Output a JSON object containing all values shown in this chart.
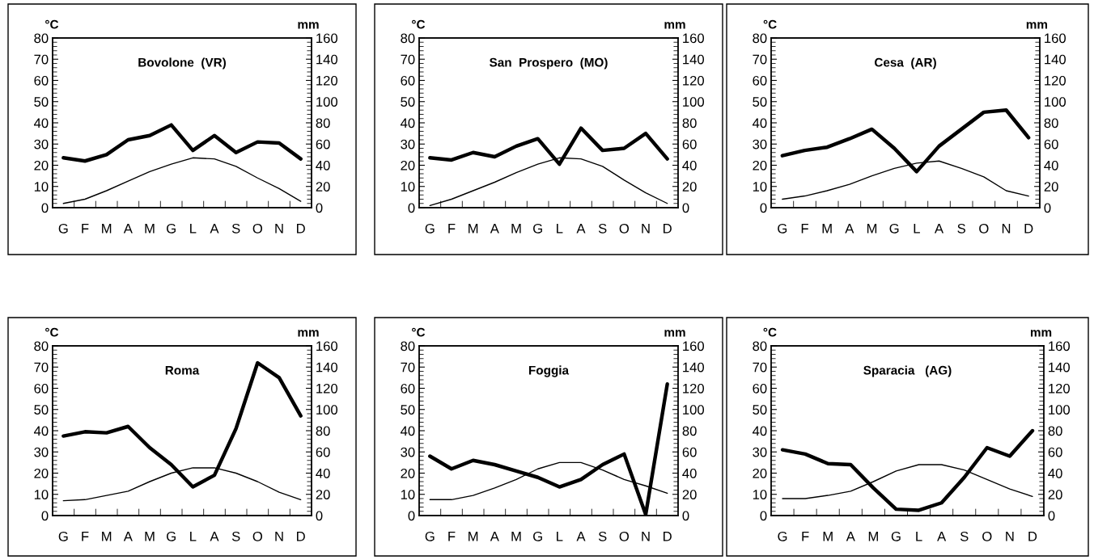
{
  "chart_data": [
    {
      "type": "line",
      "title": "Bovolone  (VR)",
      "ylabel": "°C",
      "y2label": "mm",
      "categories": [
        "G",
        "F",
        "M",
        "A",
        "M",
        "G",
        "L",
        "A",
        "S",
        "O",
        "N",
        "D"
      ],
      "ylim": [
        0,
        80
      ],
      "yticks": [
        0,
        10,
        20,
        30,
        40,
        50,
        60,
        70,
        80
      ],
      "y2lim": [
        0,
        160
      ],
      "y2ticks": [
        0,
        20,
        40,
        60,
        80,
        100,
        120,
        140,
        160
      ],
      "series": [
        {
          "color": "#000000",
          "values": [
            2,
            4,
            8,
            12.5,
            17,
            20.5,
            23.5,
            23,
            19.5,
            14,
            9,
            3
          ]
        },
        {
          "color": "#000000",
          "axis": "y2",
          "values": [
            47,
            44,
            50,
            64,
            68,
            78,
            54,
            68,
            52,
            62,
            61,
            46
          ]
        }
      ]
    },
    {
      "type": "line",
      "title": "San  Prospero  (MO)",
      "ylabel": "°C",
      "y2label": "mm",
      "categories": [
        "G",
        "F",
        "M",
        "A",
        "M",
        "G",
        "L",
        "A",
        "S",
        "O",
        "N",
        "D"
      ],
      "ylim": [
        0,
        80
      ],
      "yticks": [
        0,
        10,
        20,
        30,
        40,
        50,
        60,
        70,
        80
      ],
      "y2lim": [
        0,
        160
      ],
      "y2ticks": [
        0,
        20,
        40,
        60,
        80,
        100,
        120,
        140,
        160
      ],
      "series": [
        {
          "color": "#000000",
          "values": [
            1,
            4,
            8,
            12,
            16.5,
            20.5,
            23.5,
            23,
            19.5,
            13,
            7,
            2
          ]
        },
        {
          "color": "#000000",
          "axis": "y2",
          "values": [
            47,
            45,
            52,
            48,
            58,
            65,
            41,
            75,
            54,
            56,
            70,
            46
          ]
        }
      ]
    },
    {
      "type": "line",
      "title": "Cesa  (AR)",
      "ylabel": "°C",
      "y2label": "mm",
      "categories": [
        "G",
        "F",
        "M",
        "A",
        "M",
        "G",
        "L",
        "A",
        "S",
        "O",
        "N",
        "D"
      ],
      "ylim": [
        0,
        80
      ],
      "yticks": [
        0,
        10,
        20,
        30,
        40,
        50,
        60,
        70,
        80
      ],
      "y2lim": [
        0,
        160
      ],
      "y2ticks": [
        0,
        20,
        40,
        60,
        80,
        100,
        120,
        140,
        160
      ],
      "series": [
        {
          "color": "#000000",
          "values": [
            4,
            5.5,
            8,
            11,
            15,
            18.5,
            21,
            22,
            18.5,
            14.5,
            8,
            5.5
          ]
        },
        {
          "color": "#000000",
          "axis": "y2",
          "values": [
            49,
            54,
            57,
            65,
            74,
            56,
            34,
            58,
            74,
            90,
            92,
            66
          ]
        }
      ]
    },
    {
      "type": "line",
      "title": "Roma",
      "ylabel": "°C",
      "y2label": "mm",
      "categories": [
        "G",
        "F",
        "M",
        "A",
        "M",
        "G",
        "L",
        "A",
        "S",
        "O",
        "N",
        "D"
      ],
      "ylim": [
        0,
        80
      ],
      "yticks": [
        0,
        10,
        20,
        30,
        40,
        50,
        60,
        70,
        80
      ],
      "y2lim": [
        0,
        160
      ],
      "y2ticks": [
        0,
        20,
        40,
        60,
        80,
        100,
        120,
        140,
        160
      ],
      "series": [
        {
          "color": "#000000",
          "values": [
            7,
            7.5,
            9.5,
            11.5,
            16,
            20,
            22.5,
            22.5,
            20,
            16,
            11,
            7.5
          ]
        },
        {
          "color": "#000000",
          "axis": "y2",
          "values": [
            75,
            79,
            78,
            84,
            64,
            48,
            27,
            38,
            82,
            144,
            130,
            94
          ]
        }
      ]
    },
    {
      "type": "line",
      "title": "Foggia",
      "ylabel": "°C",
      "y2label": "mm",
      "categories": [
        "G",
        "F",
        "M",
        "A",
        "M",
        "G",
        "L",
        "A",
        "S",
        "O",
        "N",
        "D"
      ],
      "ylim": [
        0,
        80
      ],
      "yticks": [
        0,
        10,
        20,
        30,
        40,
        50,
        60,
        70,
        80
      ],
      "y2lim": [
        0,
        160
      ],
      "y2ticks": [
        0,
        20,
        40,
        60,
        80,
        100,
        120,
        140,
        160
      ],
      "series": [
        {
          "color": "#000000",
          "values": [
            7.5,
            7.5,
            9.5,
            13,
            17,
            22,
            25,
            25,
            21.5,
            17,
            14,
            10.5
          ]
        },
        {
          "color": "#000000",
          "axis": "y2",
          "values": [
            56,
            44,
            52,
            48,
            42,
            36,
            27,
            34,
            48,
            58,
            1,
            124
          ]
        }
      ]
    },
    {
      "type": "line",
      "title": "Sparacia   (AG)",
      "ylabel": "°C",
      "y2label": "mm",
      "categories": [
        "G",
        "F",
        "M",
        "A",
        "M",
        "G",
        "L",
        "A",
        "S",
        "O",
        "N",
        "D"
      ],
      "ylim": [
        0,
        80
      ],
      "yticks": [
        0,
        10,
        20,
        30,
        40,
        50,
        60,
        70,
        80
      ],
      "y2lim": [
        0,
        160
      ],
      "y2ticks": [
        0,
        20,
        40,
        60,
        80,
        100,
        120,
        140,
        160
      ],
      "series": [
        {
          "color": "#000000",
          "values": [
            8,
            8,
            9.5,
            11.5,
            16,
            21,
            24,
            24,
            21.5,
            17,
            12.5,
            9
          ]
        },
        {
          "color": "#000000",
          "axis": "y2",
          "values": [
            62,
            58,
            49,
            48,
            26,
            6,
            5,
            12,
            36,
            64,
            56,
            80
          ]
        }
      ]
    }
  ]
}
